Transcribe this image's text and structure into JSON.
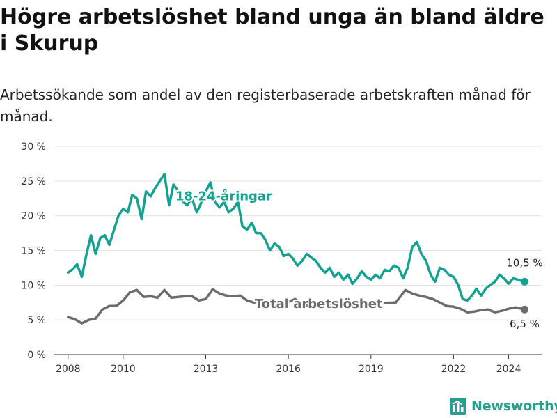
{
  "title": "Högre arbetslöshet bland unga än bland äldre i Skurup",
  "subtitle": "Arbetssökande som andel av den registerbaserade arbetskraften månad för månad.",
  "brand": "Newsworthy",
  "colors": {
    "youth": "#13a191",
    "total": "#6d6b70",
    "grid": "#e3e3e3",
    "brand": "#2a9d8f"
  },
  "chart_data": {
    "type": "line",
    "title": "Högre arbetslöshet bland unga än bland äldre i Skurup",
    "subtitle": "Arbetssökande som andel av den registerbaserade arbetskraften månad för månad.",
    "xlabel": "",
    "ylabel": "",
    "ylim": [
      0,
      30
    ],
    "xlim": [
      2007.5,
      2025.2
    ],
    "y_ticks": [
      0,
      5,
      10,
      15,
      20,
      25,
      30
    ],
    "y_tick_labels": [
      "0 %",
      "5 %",
      "10 %",
      "15 %",
      "20 %",
      "25 %",
      "30 %"
    ],
    "x_ticks": [
      2008,
      2010,
      2013,
      2016,
      2019,
      2022,
      2024
    ],
    "x_tick_labels": [
      "2008",
      "2010",
      "2013",
      "2016",
      "2019",
      "2022",
      "2024"
    ],
    "grid": "horizontal",
    "series": [
      {
        "name": "18-24-åringar",
        "color": "#13a191",
        "end_label": "10,5 %",
        "points": [
          [
            2008.0,
            11.8
          ],
          [
            2008.17,
            12.3
          ],
          [
            2008.33,
            13.0
          ],
          [
            2008.5,
            11.2
          ],
          [
            2008.67,
            14.5
          ],
          [
            2008.83,
            17.2
          ],
          [
            2009.0,
            14.5
          ],
          [
            2009.17,
            16.8
          ],
          [
            2009.33,
            17.2
          ],
          [
            2009.5,
            15.8
          ],
          [
            2009.67,
            18.0
          ],
          [
            2009.83,
            20.0
          ],
          [
            2010.0,
            21.0
          ],
          [
            2010.17,
            20.5
          ],
          [
            2010.33,
            23.0
          ],
          [
            2010.5,
            22.5
          ],
          [
            2010.67,
            19.5
          ],
          [
            2010.83,
            23.5
          ],
          [
            2011.0,
            22.8
          ],
          [
            2011.17,
            24.0
          ],
          [
            2011.33,
            25.0
          ],
          [
            2011.5,
            26.0
          ],
          [
            2011.67,
            21.5
          ],
          [
            2011.83,
            24.5
          ],
          [
            2012.0,
            23.5
          ],
          [
            2012.17,
            22.0
          ],
          [
            2012.33,
            21.5
          ],
          [
            2012.5,
            22.5
          ],
          [
            2012.67,
            20.5
          ],
          [
            2012.83,
            21.8
          ],
          [
            2013.0,
            23.5
          ],
          [
            2013.17,
            24.8
          ],
          [
            2013.33,
            22.0
          ],
          [
            2013.5,
            21.2
          ],
          [
            2013.67,
            22.0
          ],
          [
            2013.83,
            20.5
          ],
          [
            2014.0,
            21.0
          ],
          [
            2014.17,
            22.0
          ],
          [
            2014.33,
            18.5
          ],
          [
            2014.5,
            18.0
          ],
          [
            2014.67,
            19.0
          ],
          [
            2014.83,
            17.5
          ],
          [
            2015.0,
            17.5
          ],
          [
            2015.17,
            16.5
          ],
          [
            2015.33,
            15.0
          ],
          [
            2015.5,
            16.0
          ],
          [
            2015.67,
            15.5
          ],
          [
            2015.83,
            14.2
          ],
          [
            2016.0,
            14.5
          ],
          [
            2016.17,
            13.8
          ],
          [
            2016.33,
            12.8
          ],
          [
            2016.5,
            13.5
          ],
          [
            2016.67,
            14.5
          ],
          [
            2016.83,
            14.0
          ],
          [
            2017.0,
            13.5
          ],
          [
            2017.17,
            12.5
          ],
          [
            2017.33,
            11.8
          ],
          [
            2017.5,
            12.5
          ],
          [
            2017.67,
            11.2
          ],
          [
            2017.83,
            11.8
          ],
          [
            2018.0,
            10.8
          ],
          [
            2018.17,
            11.5
          ],
          [
            2018.33,
            10.2
          ],
          [
            2018.5,
            11.0
          ],
          [
            2018.67,
            12.0
          ],
          [
            2018.83,
            11.2
          ],
          [
            2019.0,
            10.8
          ],
          [
            2019.17,
            11.5
          ],
          [
            2019.33,
            11.0
          ],
          [
            2019.5,
            12.2
          ],
          [
            2019.67,
            12.0
          ],
          [
            2019.83,
            12.8
          ],
          [
            2020.0,
            12.5
          ],
          [
            2020.17,
            11.0
          ],
          [
            2020.33,
            12.5
          ],
          [
            2020.5,
            15.5
          ],
          [
            2020.67,
            16.2
          ],
          [
            2020.83,
            14.5
          ],
          [
            2021.0,
            13.5
          ],
          [
            2021.17,
            11.5
          ],
          [
            2021.33,
            10.5
          ],
          [
            2021.5,
            12.5
          ],
          [
            2021.67,
            12.2
          ],
          [
            2021.83,
            11.5
          ],
          [
            2022.0,
            11.2
          ],
          [
            2022.17,
            10.0
          ],
          [
            2022.33,
            8.0
          ],
          [
            2022.5,
            7.8
          ],
          [
            2022.67,
            8.5
          ],
          [
            2022.83,
            9.5
          ],
          [
            2023.0,
            8.5
          ],
          [
            2023.17,
            9.5
          ],
          [
            2023.33,
            10.0
          ],
          [
            2023.5,
            10.5
          ],
          [
            2023.67,
            11.5
          ],
          [
            2023.83,
            11.0
          ],
          [
            2024.0,
            10.2
          ],
          [
            2024.17,
            11.0
          ],
          [
            2024.33,
            10.8
          ],
          [
            2024.58,
            10.5
          ]
        ]
      },
      {
        "name": "Total arbetslöshet",
        "color": "#6d6b70",
        "end_label": "6,5 %",
        "points": [
          [
            2008.0,
            5.4
          ],
          [
            2008.25,
            5.1
          ],
          [
            2008.5,
            4.5
          ],
          [
            2008.75,
            5.0
          ],
          [
            2009.0,
            5.2
          ],
          [
            2009.25,
            6.5
          ],
          [
            2009.5,
            7.0
          ],
          [
            2009.75,
            7.0
          ],
          [
            2010.0,
            7.8
          ],
          [
            2010.25,
            9.0
          ],
          [
            2010.5,
            9.3
          ],
          [
            2010.75,
            8.3
          ],
          [
            2011.0,
            8.4
          ],
          [
            2011.25,
            8.2
          ],
          [
            2011.5,
            9.3
          ],
          [
            2011.75,
            8.2
          ],
          [
            2012.0,
            8.3
          ],
          [
            2012.25,
            8.4
          ],
          [
            2012.5,
            8.4
          ],
          [
            2012.75,
            7.8
          ],
          [
            2013.0,
            8.0
          ],
          [
            2013.25,
            9.4
          ],
          [
            2013.5,
            8.8
          ],
          [
            2013.75,
            8.5
          ],
          [
            2014.0,
            8.4
          ],
          [
            2014.25,
            8.5
          ],
          [
            2014.5,
            7.8
          ],
          [
            2014.75,
            7.5
          ],
          [
            2015.0,
            7.7
          ],
          [
            2015.25,
            7.6
          ],
          [
            2015.5,
            7.4
          ],
          [
            2015.75,
            7.3
          ],
          [
            2016.0,
            7.6
          ],
          [
            2016.25,
            8.0
          ],
          [
            2016.5,
            7.2
          ],
          [
            2016.75,
            7.0
          ],
          [
            2019.9,
            7.5
          ],
          [
            2020.25,
            9.3
          ],
          [
            2020.5,
            8.8
          ],
          [
            2020.75,
            8.5
          ],
          [
            2021.0,
            8.3
          ],
          [
            2021.25,
            8.0
          ],
          [
            2021.5,
            7.5
          ],
          [
            2021.75,
            7.0
          ],
          [
            2022.0,
            6.9
          ],
          [
            2022.25,
            6.6
          ],
          [
            2022.5,
            6.1
          ],
          [
            2022.75,
            6.2
          ],
          [
            2023.0,
            6.4
          ],
          [
            2023.25,
            6.5
          ],
          [
            2023.5,
            6.1
          ],
          [
            2023.75,
            6.3
          ],
          [
            2024.0,
            6.6
          ],
          [
            2024.25,
            6.8
          ],
          [
            2024.58,
            6.5
          ]
        ]
      }
    ]
  }
}
